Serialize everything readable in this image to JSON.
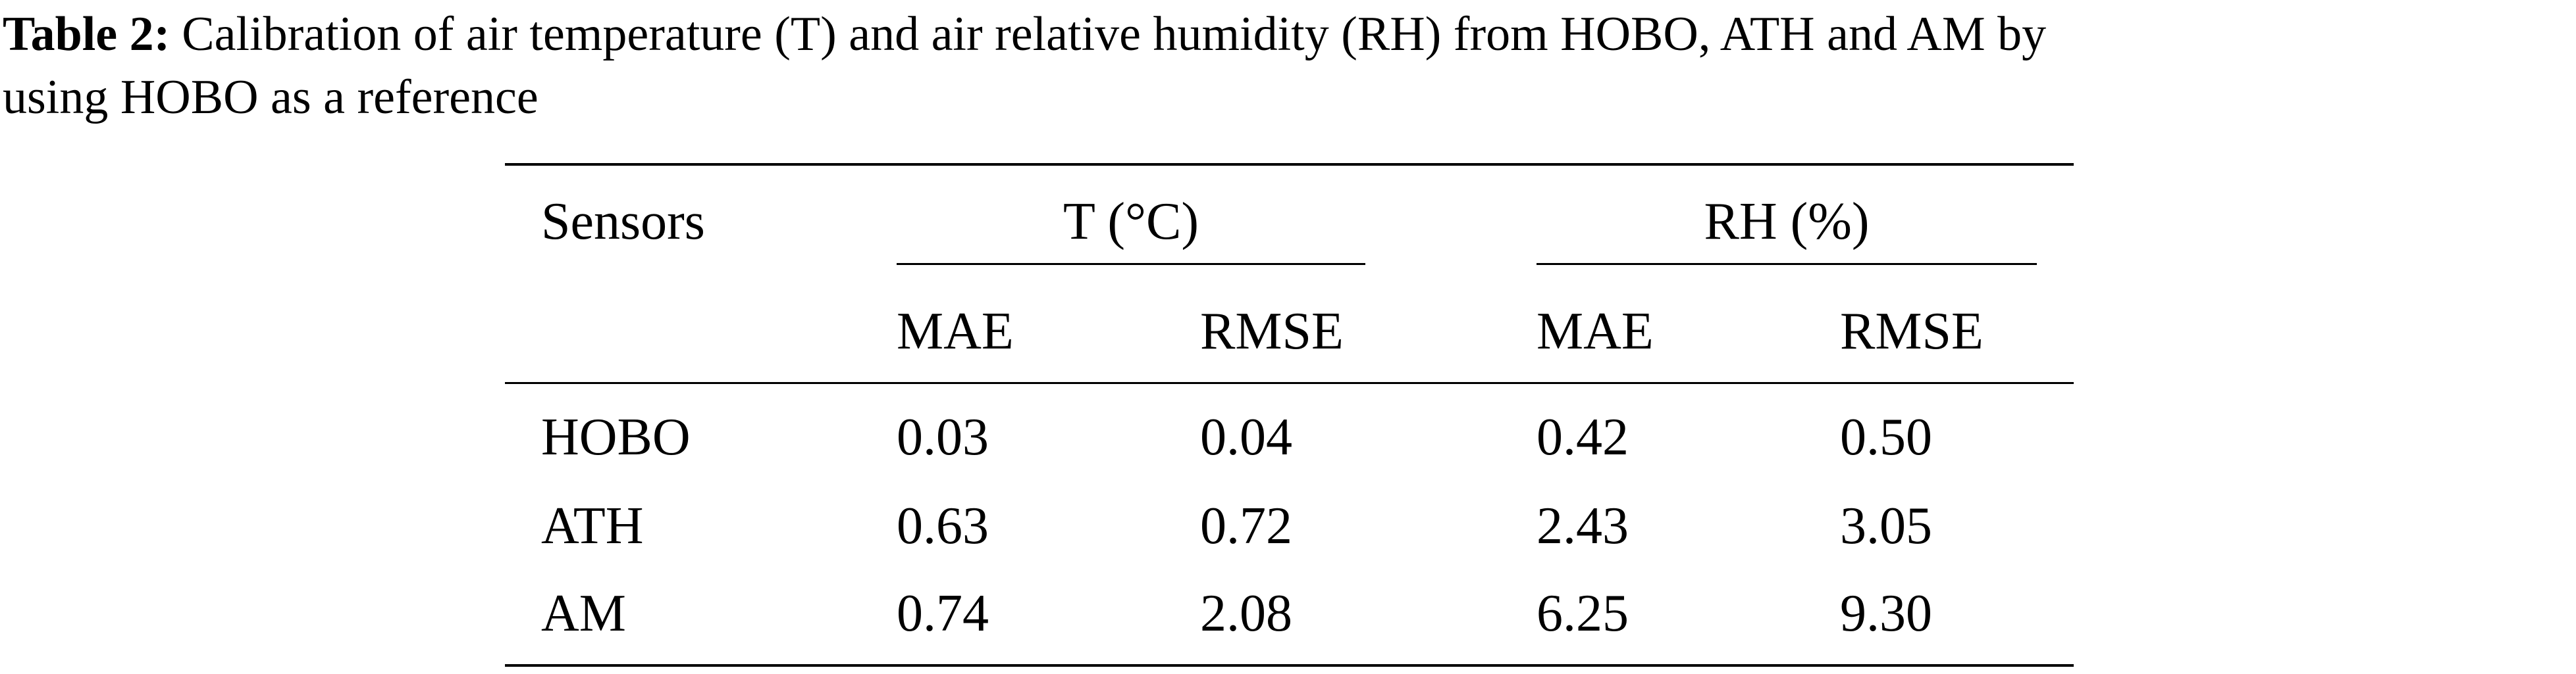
{
  "caption": {
    "label": "Table 2:",
    "line1": "Calibration of air temperature (T) and air relative humidity (RH) from HOBO, ATH and AM by",
    "line2": "using HOBO as a reference"
  },
  "table": {
    "header": {
      "sensors": "Sensors",
      "group_t": "T (°C)",
      "group_rh": "RH (%)",
      "t_mae": "MAE",
      "t_rmse": "RMSE",
      "rh_mae": "MAE",
      "rh_rmse": "RMSE"
    },
    "rows": [
      {
        "sensor": "HOBO",
        "t_mae": "0.03",
        "t_rmse": "0.04",
        "rh_mae": "0.42",
        "rh_rmse": "0.50"
      },
      {
        "sensor": "ATH",
        "t_mae": "0.63",
        "t_rmse": "0.72",
        "rh_mae": "2.43",
        "rh_rmse": "3.05"
      },
      {
        "sensor": "AM",
        "t_mae": "0.74",
        "t_rmse": "2.08",
        "rh_mae": "6.25",
        "rh_rmse": "9.30"
      }
    ]
  }
}
